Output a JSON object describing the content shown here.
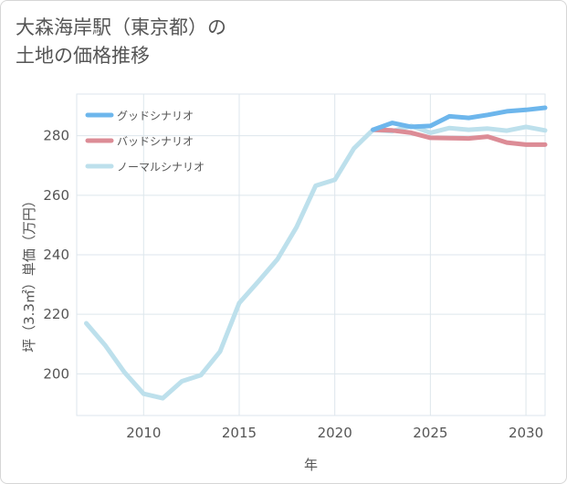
{
  "title_lines": [
    "大森海岸駅（東京都）の",
    "土地の価格推移"
  ],
  "chart_data": {
    "type": "line",
    "xlabel": "年",
    "ylabel": "坪（3.3㎡）単価（万円）",
    "xlim": [
      2006.5,
      2031
    ],
    "ylim": [
      186,
      294
    ],
    "xticks": [
      2010,
      2015,
      2020,
      2025,
      2030
    ],
    "yticks": [
      200,
      220,
      240,
      260,
      280
    ],
    "grid": true,
    "legend_position": "top-left",
    "series": [
      {
        "name": "グッドシナリオ",
        "color": "#6db6ec",
        "x": [
          2022,
          2023,
          2024,
          2025,
          2026,
          2027,
          2028,
          2029,
          2030,
          2031
        ],
        "y": [
          282,
          284.3,
          283,
          283.3,
          286.5,
          286,
          287,
          288.2,
          288.7,
          289.4
        ]
      },
      {
        "name": "バッドシナリオ",
        "color": "#dc8c96",
        "x": [
          2022,
          2023,
          2024,
          2025,
          2026,
          2027,
          2028,
          2029,
          2030,
          2031
        ],
        "y": [
          282,
          281.8,
          281,
          279.3,
          279.2,
          279.1,
          279.7,
          277.7,
          277,
          277
        ]
      },
      {
        "name": "ノーマルシナリオ",
        "color": "#bde0ec",
        "x": [
          2007,
          2008,
          2009,
          2010,
          2011,
          2012,
          2013,
          2014,
          2015,
          2016,
          2017,
          2018,
          2019,
          2020,
          2021,
          2022,
          2023,
          2024,
          2025,
          2026,
          2027,
          2028,
          2029,
          2030,
          2031
        ],
        "y": [
          217,
          209.5,
          200.5,
          193.3,
          191.8,
          197.5,
          199.6,
          207.5,
          223.8,
          231,
          238.5,
          249.3,
          263.2,
          265.2,
          275.7,
          282,
          281.5,
          283.3,
          281,
          282.6,
          282,
          282.4,
          281.7,
          283,
          281.8
        ]
      }
    ]
  }
}
